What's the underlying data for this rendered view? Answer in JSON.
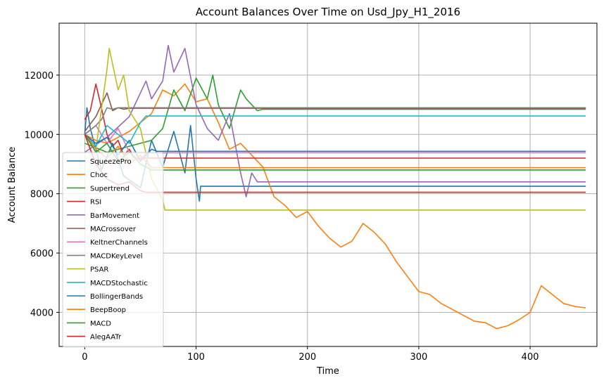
{
  "chart_data": {
    "type": "line",
    "title": "Account Balances Over Time on Usd_Jpy_H1_2016",
    "xlabel": "Time",
    "ylabel": "Account Balance",
    "xlim": [
      -23,
      460
    ],
    "ylim": [
      2850,
      13750
    ],
    "xticks": [
      0,
      100,
      200,
      300,
      400
    ],
    "yticks": [
      4000,
      6000,
      8000,
      10000,
      12000
    ],
    "grid": true,
    "legend_position": "lower-left",
    "series": [
      {
        "name": "SqueezePro",
        "color": "#1f77b4",
        "x": [
          0,
          2,
          5,
          10,
          15,
          25,
          35,
          50,
          60,
          70,
          80,
          90,
          95,
          100,
          103,
          104,
          450
        ],
        "y": [
          10000,
          10900,
          10200,
          9500,
          8800,
          9700,
          8600,
          8200,
          9800,
          8900,
          10100,
          8700,
          10300,
          8500,
          7750,
          8250,
          8250
        ]
      },
      {
        "name": "Choc",
        "color": "#ff7f0e",
        "x": [
          0,
          10,
          20,
          30,
          40,
          50,
          60,
          70,
          80,
          90,
          100,
          110,
          120,
          130,
          140,
          150,
          160,
          170,
          180,
          190,
          200,
          210,
          220,
          230,
          240,
          250,
          260,
          270,
          280,
          290,
          300,
          310,
          320,
          330,
          340,
          350,
          360,
          370,
          380,
          390,
          400,
          410,
          420,
          430,
          440,
          450
        ],
        "y": [
          10000,
          9800,
          9700,
          9900,
          10100,
          10400,
          10700,
          11500,
          11300,
          11700,
          11100,
          11200,
          10400,
          9500,
          9700,
          9300,
          8900,
          7900,
          7600,
          7200,
          7400,
          6900,
          6500,
          6200,
          6400,
          7000,
          6700,
          6300,
          5700,
          5200,
          4700,
          4600,
          4300,
          4100,
          3900,
          3700,
          3650,
          3450,
          3550,
          3750,
          4000,
          4900,
          4600,
          4300,
          4200,
          4150
        ]
      },
      {
        "name": "Supertrend",
        "color": "#2ca02c",
        "x": [
          0,
          20,
          40,
          60,
          70,
          80,
          90,
          100,
          110,
          115,
          120,
          130,
          140,
          145,
          150,
          155,
          160,
          450
        ],
        "y": [
          9700,
          9400,
          9600,
          9800,
          10200,
          11500,
          10800,
          11900,
          11200,
          12000,
          11000,
          10200,
          11500,
          11200,
          11000,
          10800,
          10850,
          10850
        ]
      },
      {
        "name": "RSI",
        "color": "#d62728",
        "x": [
          0,
          5,
          10,
          15,
          20,
          25,
          30,
          35,
          40,
          45,
          450
        ],
        "y": [
          10500,
          10800,
          11700,
          10900,
          10000,
          9600,
          9800,
          9300,
          9500,
          9200,
          9200
        ]
      },
      {
        "name": "BarMovement",
        "color": "#9467bd",
        "x": [
          0,
          20,
          40,
          55,
          60,
          70,
          75,
          80,
          90,
          100,
          110,
          120,
          130,
          140,
          145,
          150,
          155,
          160,
          450
        ],
        "y": [
          9400,
          9900,
          10600,
          11800,
          11200,
          11800,
          13000,
          12100,
          12900,
          11000,
          10200,
          9800,
          10700,
          8700,
          7900,
          8700,
          8400,
          8400,
          8400
        ]
      },
      {
        "name": "MACrossover",
        "color": "#8c564b",
        "x": [
          0,
          10,
          20,
          25,
          30,
          35,
          40,
          450
        ],
        "y": [
          10100,
          10600,
          11400,
          10800,
          10900,
          10850,
          10880,
          10880
        ]
      },
      {
        "name": "KeltnerChannels",
        "color": "#e377c2",
        "x": [
          0,
          10,
          20,
          30,
          40,
          50,
          55,
          450
        ],
        "y": [
          10000,
          10300,
          9700,
          10200,
          9400,
          9100,
          9380,
          9380
        ]
      },
      {
        "name": "MACDKeyLevel",
        "color": "#7f7f7f",
        "x": [
          0,
          10,
          15,
          20,
          25,
          30,
          450
        ],
        "y": [
          10000,
          10300,
          10500,
          10900,
          10850,
          10900,
          10900
        ]
      },
      {
        "name": "PSAR",
        "color": "#bcbd22",
        "x": [
          0,
          10,
          20,
          22,
          30,
          35,
          40,
          50,
          60,
          70,
          72,
          450
        ],
        "y": [
          10000,
          9500,
          12200,
          12900,
          11500,
          12000,
          10800,
          10200,
          8500,
          7800,
          7450,
          7450
        ]
      },
      {
        "name": "MACDStochastic",
        "color": "#17becf",
        "x": [
          0,
          10,
          20,
          30,
          40,
          50,
          55,
          450
        ],
        "y": [
          10000,
          9600,
          10300,
          10000,
          9700,
          10400,
          10620,
          10620
        ]
      },
      {
        "name": "BollingerBands",
        "color": "#1f77b4",
        "x": [
          0,
          10,
          20,
          30,
          40,
          50,
          60,
          65,
          450
        ],
        "y": [
          10000,
          9700,
          9900,
          9300,
          9800,
          9100,
          9500,
          9430,
          9430
        ]
      },
      {
        "name": "BeepBoop",
        "color": "#ff7f0e",
        "x": [
          0,
          10,
          20,
          30,
          40,
          50,
          60,
          450
        ],
        "y": [
          10000,
          9500,
          9200,
          9600,
          9000,
          9300,
          8880,
          8880
        ]
      },
      {
        "name": "MACD",
        "color": "#2ca02c",
        "x": [
          0,
          10,
          20,
          30,
          40,
          50,
          60,
          450
        ],
        "y": [
          10000,
          9400,
          9700,
          9100,
          9400,
          9000,
          8800,
          8800
        ]
      },
      {
        "name": "AlegAATr",
        "color": "#d62728",
        "x": [
          0,
          10,
          20,
          30,
          40,
          50,
          55,
          450
        ],
        "y": [
          10000,
          9000,
          8500,
          8300,
          8400,
          8100,
          8050,
          8050
        ]
      }
    ]
  }
}
